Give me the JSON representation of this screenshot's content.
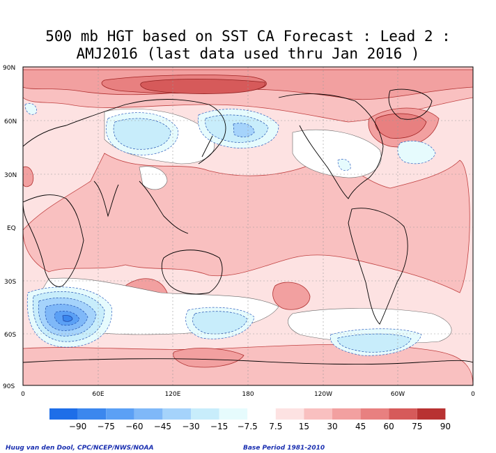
{
  "title": {
    "line1": "500 mb HGT based on SST CA Forecast : Lead 2 :",
    "line2": "AMJ2016 (last data used thru Jan 2016 )"
  },
  "map": {
    "lat_labels": [
      "90N",
      "60N",
      "30N",
      "EQ",
      "30S",
      "60S",
      "90S"
    ],
    "lon_labels": [
      "0",
      "60E",
      "120E",
      "180",
      "120W",
      "60W",
      "0"
    ]
  },
  "legend": {
    "levels": [
      "-90",
      "-75",
      "-60",
      "-45",
      "-30",
      "-15",
      "-7.5",
      "7.5",
      "15",
      "30",
      "45",
      "60",
      "75",
      "90"
    ],
    "colors": [
      "#1e6ee8",
      "#3b87ee",
      "#5ba0f5",
      "#7fb8f8",
      "#a5d3fb",
      "#c8edfb",
      "#e6fbfd",
      "#ffffff",
      "#fde2e2",
      "#f9c0c0",
      "#f2a0a0",
      "#e88080",
      "#d65a5a",
      "#b83232"
    ]
  },
  "credits": {
    "left": "Huug van den Dool, CPC/NCEP/NWS/NOAA",
    "right": "Base Period 1981-2010"
  }
}
